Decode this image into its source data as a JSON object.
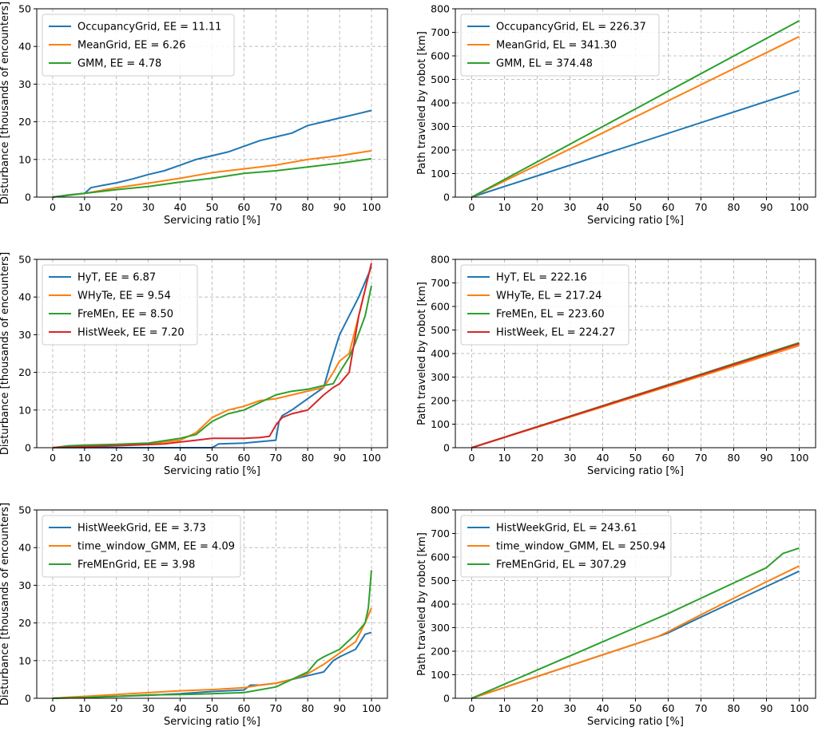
{
  "colors": {
    "blue": "#1f77b4",
    "orange": "#ff7f0e",
    "green": "#2ca02c",
    "red": "#d62728",
    "grid": "#b0b0b0"
  },
  "chart_data": [
    {
      "type": "line",
      "id": "disturbance-static",
      "xlabel": "Servicing ratio [%]",
      "ylabel": "Disturbance [thousands of encounters]",
      "xlim": [
        -5,
        105
      ],
      "ylim": [
        0,
        50
      ],
      "xticks": [
        0,
        10,
        20,
        30,
        40,
        50,
        60,
        70,
        80,
        90,
        100
      ],
      "yticks": [
        0,
        10,
        20,
        30,
        40,
        50
      ],
      "grid": true,
      "legend_position": "upper-left",
      "series": [
        {
          "name": "OccupancyGrid, EE = 11.11",
          "color": "blue",
          "x": [
            0,
            5,
            10,
            12,
            15,
            20,
            25,
            30,
            35,
            40,
            45,
            50,
            55,
            60,
            65,
            70,
            75,
            80,
            85,
            90,
            95,
            100
          ],
          "y": [
            0,
            0.6,
            1.0,
            2.5,
            3.0,
            3.8,
            4.8,
            6.0,
            7.0,
            8.5,
            10.0,
            11.0,
            12.0,
            13.5,
            15.0,
            16.0,
            17.0,
            19.0,
            20.0,
            21.0,
            22.0,
            23.0
          ]
        },
        {
          "name": "MeanGrid, EE = 6.26",
          "color": "orange",
          "x": [
            0,
            10,
            20,
            30,
            40,
            50,
            60,
            70,
            80,
            90,
            100
          ],
          "y": [
            0,
            1.0,
            2.5,
            3.7,
            5.0,
            6.5,
            7.5,
            8.5,
            10.0,
            11.0,
            12.3
          ]
        },
        {
          "name": "GMM, EE = 4.78",
          "color": "green",
          "x": [
            0,
            10,
            20,
            30,
            40,
            50,
            60,
            70,
            80,
            90,
            100
          ],
          "y": [
            0,
            1.0,
            2.0,
            2.8,
            4.0,
            5.0,
            6.3,
            7.0,
            8.0,
            9.0,
            10.2
          ]
        }
      ]
    },
    {
      "type": "line",
      "id": "path-static",
      "xlabel": "Servicing ratio [%]",
      "ylabel": "Path traveled by robot [km]",
      "xlim": [
        -5,
        105
      ],
      "ylim": [
        0,
        800
      ],
      "xticks": [
        0,
        10,
        20,
        30,
        40,
        50,
        60,
        70,
        80,
        90,
        100
      ],
      "yticks": [
        0,
        100,
        200,
        300,
        400,
        500,
        600,
        700,
        800
      ],
      "grid": true,
      "legend_position": "upper-left",
      "series": [
        {
          "name": "OccupancyGrid, EL = 226.37",
          "color": "blue",
          "x": [
            0,
            100
          ],
          "y": [
            0,
            452
          ]
        },
        {
          "name": "MeanGrid, EL = 341.30",
          "color": "orange",
          "x": [
            0,
            100
          ],
          "y": [
            0,
            682
          ]
        },
        {
          "name": "GMM, EL = 374.48",
          "color": "green",
          "x": [
            0,
            100
          ],
          "y": [
            0,
            749
          ]
        }
      ]
    },
    {
      "type": "line",
      "id": "disturbance-temporal",
      "xlabel": "Servicing ratio [%]",
      "ylabel": "Disturbance [thousands of encounters]",
      "xlim": [
        -5,
        105
      ],
      "ylim": [
        0,
        50
      ],
      "xticks": [
        0,
        10,
        20,
        30,
        40,
        50,
        60,
        70,
        80,
        90,
        100
      ],
      "yticks": [
        0,
        10,
        20,
        30,
        40,
        50
      ],
      "grid": true,
      "legend_position": "upper-left",
      "series": [
        {
          "name": "HyT, EE = 6.87",
          "color": "blue",
          "x": [
            0,
            50,
            52,
            60,
            70,
            71,
            72,
            75,
            80,
            85,
            87,
            90,
            93,
            96,
            98,
            100
          ],
          "y": [
            0,
            0,
            1.0,
            1.2,
            2.0,
            7.0,
            8.5,
            10.0,
            13.0,
            16.0,
            22.0,
            30.0,
            35.0,
            40.0,
            44.0,
            48.0
          ]
        },
        {
          "name": "WHyTe, EE = 9.54",
          "color": "orange",
          "x": [
            0,
            10,
            20,
            30,
            40,
            45,
            50,
            55,
            60,
            65,
            70,
            75,
            80,
            85,
            88,
            90,
            93,
            96,
            98,
            100
          ],
          "y": [
            0,
            0.5,
            0.8,
            1.0,
            2.0,
            4.0,
            8.0,
            10.0,
            11.0,
            12.5,
            13.0,
            14.0,
            15.0,
            16.0,
            20.0,
            23.0,
            25.0,
            35.0,
            42.0,
            49.0
          ]
        },
        {
          "name": "FreMEn, EE = 8.50",
          "color": "green",
          "x": [
            0,
            5,
            10,
            20,
            30,
            40,
            45,
            50,
            55,
            60,
            65,
            70,
            75,
            80,
            85,
            88,
            90,
            93,
            95,
            98,
            100
          ],
          "y": [
            0,
            0.5,
            0.7,
            0.9,
            1.2,
            2.5,
            3.5,
            7.0,
            9.0,
            10.0,
            12.0,
            14.0,
            15.0,
            15.5,
            16.5,
            17.0,
            20.0,
            24.0,
            28.0,
            35.0,
            43.0
          ]
        },
        {
          "name": "HistWeek, EE = 7.20",
          "color": "red",
          "x": [
            0,
            20,
            35,
            40,
            45,
            50,
            60,
            65,
            68,
            70,
            72,
            75,
            80,
            85,
            88,
            90,
            93,
            96,
            98,
            100
          ],
          "y": [
            0,
            0.5,
            1.0,
            1.5,
            2.0,
            2.5,
            2.5,
            2.7,
            3.0,
            6.0,
            8.0,
            9.0,
            10.0,
            14.0,
            16.0,
            17.0,
            20.0,
            35.0,
            42.0,
            49.0
          ]
        }
      ]
    },
    {
      "type": "line",
      "id": "path-temporal",
      "xlabel": "Servicing ratio [%]",
      "ylabel": "Path traveled by robot [km]",
      "xlim": [
        -5,
        105
      ],
      "ylim": [
        0,
        800
      ],
      "xticks": [
        0,
        10,
        20,
        30,
        40,
        50,
        60,
        70,
        80,
        90,
        100
      ],
      "yticks": [
        0,
        100,
        200,
        300,
        400,
        500,
        600,
        700,
        800
      ],
      "grid": true,
      "legend_position": "upper-left",
      "series": [
        {
          "name": "HyT, EL = 222.16",
          "color": "blue",
          "x": [
            0,
            100
          ],
          "y": [
            0,
            442
          ]
        },
        {
          "name": "WHyTe, EL = 217.24",
          "color": "orange",
          "x": [
            0,
            100
          ],
          "y": [
            0,
            434
          ]
        },
        {
          "name": "FreMEn, EL = 223.60",
          "color": "green",
          "x": [
            0,
            100
          ],
          "y": [
            0,
            446
          ]
        },
        {
          "name": "HistWeek, EL = 224.27",
          "color": "red",
          "x": [
            0,
            100
          ],
          "y": [
            0,
            442
          ]
        }
      ]
    },
    {
      "type": "line",
      "id": "disturbance-hybrid",
      "xlabel": "Servicing ratio [%]",
      "ylabel": "Disturbance [thousands of encounters]",
      "xlim": [
        -5,
        105
      ],
      "ylim": [
        0,
        50
      ],
      "xticks": [
        0,
        10,
        20,
        30,
        40,
        50,
        60,
        70,
        80,
        90,
        100
      ],
      "yticks": [
        0,
        10,
        20,
        30,
        40,
        50
      ],
      "grid": true,
      "legend_position": "upper-left",
      "series": [
        {
          "name": "HistWeekGrid, EE = 3.73",
          "color": "blue",
          "x": [
            0,
            5,
            10,
            20,
            30,
            40,
            50,
            60,
            62,
            65,
            70,
            75,
            80,
            85,
            88,
            90,
            95,
            98,
            100
          ],
          "y": [
            0,
            0.2,
            0.3,
            0.5,
            0.8,
            1.2,
            1.8,
            2.2,
            3.5,
            3.5,
            4.0,
            5.0,
            6.0,
            7.0,
            10.0,
            11.0,
            13.0,
            17.0,
            17.5
          ]
        },
        {
          "name": "time_window_GMM, EE = 4.09",
          "color": "orange",
          "x": [
            0,
            5,
            10,
            20,
            30,
            40,
            50,
            60,
            65,
            70,
            75,
            80,
            85,
            90,
            95,
            98,
            100
          ],
          "y": [
            0,
            0.3,
            0.5,
            1.0,
            1.5,
            2.0,
            2.3,
            2.8,
            3.5,
            4.0,
            5.0,
            6.5,
            9.0,
            12.0,
            15.0,
            20.0,
            24.0
          ]
        },
        {
          "name": "FreMEnGrid, EE = 3.98",
          "color": "green",
          "x": [
            0,
            10,
            20,
            30,
            40,
            50,
            60,
            70,
            75,
            80,
            83,
            85,
            90,
            95,
            98,
            99,
            100
          ],
          "y": [
            0,
            0.2,
            0.5,
            0.9,
            1.0,
            1.2,
            1.5,
            3.0,
            5.0,
            7.0,
            10.0,
            11.0,
            13.0,
            17.0,
            20.0,
            24.0,
            34.0
          ]
        }
      ]
    },
    {
      "type": "line",
      "id": "path-hybrid",
      "xlabel": "Servicing ratio [%]",
      "ylabel": "Path traveled by robot [km]",
      "xlim": [
        -5,
        105
      ],
      "ylim": [
        0,
        800
      ],
      "xticks": [
        0,
        10,
        20,
        30,
        40,
        50,
        60,
        70,
        80,
        90,
        100
      ],
      "yticks": [
        0,
        100,
        200,
        300,
        400,
        500,
        600,
        700,
        800
      ],
      "grid": true,
      "legend_position": "upper-left",
      "series": [
        {
          "name": "HistWeekGrid, EL = 243.61",
          "color": "blue",
          "x": [
            0,
            57,
            60,
            70,
            80,
            90,
            100
          ],
          "y": [
            0,
            263,
            278,
            345,
            410,
            475,
            540
          ]
        },
        {
          "name": "time_window_GMM, EL = 250.94",
          "color": "orange",
          "x": [
            0,
            57,
            60,
            70,
            80,
            90,
            100
          ],
          "y": [
            0,
            263,
            283,
            355,
            425,
            495,
            562
          ]
        },
        {
          "name": "FreMEnGrid, EL = 307.29",
          "color": "green",
          "x": [
            0,
            10,
            20,
            30,
            40,
            50,
            60,
            70,
            80,
            90,
            95,
            100
          ],
          "y": [
            0,
            60,
            120,
            180,
            240,
            300,
            360,
            425,
            490,
            555,
            615,
            638
          ]
        }
      ]
    }
  ]
}
